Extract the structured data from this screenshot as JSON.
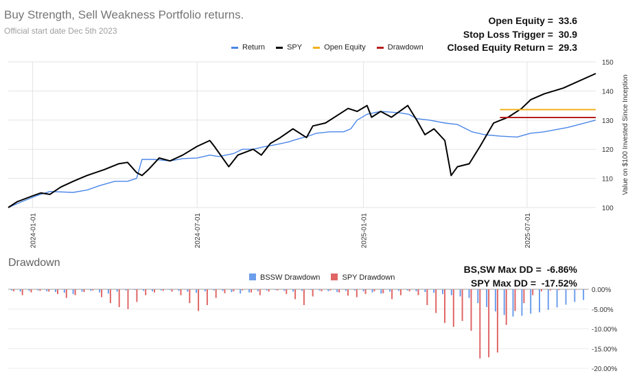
{
  "header": {
    "title": "Buy Strength, Sell Weakness Portfolio returns.",
    "subtitle": "Official start date Dec 5th 2023"
  },
  "stats_top": [
    {
      "label": "Open Equity =",
      "value": "33.6"
    },
    {
      "label": "Stop Loss Trigger =",
      "value": "30.9"
    },
    {
      "label": "Closed Equity Return =",
      "value": "29.3"
    }
  ],
  "stats_bottom": [
    {
      "label": "BS,SW Max DD =",
      "value": "-6.86%"
    },
    {
      "label": "SPY Max DD =",
      "value": "-17.52%"
    }
  ],
  "drawdown_title": "Drawdown",
  "colors": {
    "return": "#4a86e8",
    "spy": "#000000",
    "open_equity": "#f1b01c",
    "drawdown": "#b71c1c",
    "bssw_bar": "#6d9eeb",
    "spy_bar": "#e06666"
  },
  "chart_data": [
    {
      "type": "line",
      "y_axis_label": "Value on $100 Invested Since Inception",
      "y_ticks": [
        "100",
        "110",
        "120",
        "130",
        "140",
        "150"
      ],
      "ylim": [
        100,
        150
      ],
      "x_ticks": [
        "2024-01-01",
        "2024-07-01",
        "2025-01-01",
        "2025-07-01"
      ],
      "xlim": [
        "2023-12-05",
        "2025-09-15"
      ],
      "grid": true,
      "legend_position": "top",
      "series": [
        {
          "name": "Return",
          "points": [
            [
              "2023-12-05",
              100
            ],
            [
              "2023-12-20",
              102
            ],
            [
              "2024-01-05",
              104
            ],
            [
              "2024-01-20",
              105.5
            ],
            [
              "2024-02-15",
              105.2
            ],
            [
              "2024-03-01",
              106
            ],
            [
              "2024-03-15",
              107.5
            ],
            [
              "2024-04-01",
              109
            ],
            [
              "2024-04-15",
              109
            ],
            [
              "2024-04-25",
              110
            ],
            [
              "2024-05-01",
              116.5
            ],
            [
              "2024-05-15",
              116.5
            ],
            [
              "2024-06-01",
              116
            ],
            [
              "2024-06-15",
              116.8
            ],
            [
              "2024-07-01",
              117
            ],
            [
              "2024-07-15",
              118
            ],
            [
              "2024-07-25",
              117.5
            ],
            [
              "2024-08-10",
              118.5
            ],
            [
              "2024-08-20",
              120
            ],
            [
              "2024-09-01",
              120
            ],
            [
              "2024-09-15",
              121
            ],
            [
              "2024-09-25",
              121.5
            ],
            [
              "2024-10-10",
              122.5
            ],
            [
              "2024-10-20",
              123.5
            ],
            [
              "2024-11-01",
              124.5
            ],
            [
              "2024-11-10",
              125.5
            ],
            [
              "2024-11-25",
              126
            ],
            [
              "2024-12-10",
              126
            ],
            [
              "2024-12-18",
              127
            ],
            [
              "2024-12-25",
              130
            ],
            [
              "2025-01-05",
              132
            ],
            [
              "2025-01-20",
              133
            ],
            [
              "2025-02-10",
              132.5
            ],
            [
              "2025-02-20",
              132
            ],
            [
              "2025-03-01",
              130.5
            ],
            [
              "2025-03-15",
              130
            ],
            [
              "2025-04-01",
              129
            ],
            [
              "2025-04-15",
              128.5
            ],
            [
              "2025-05-01",
              126
            ],
            [
              "2025-05-15",
              125
            ],
            [
              "2025-06-01",
              124.5
            ],
            [
              "2025-06-20",
              124.2
            ],
            [
              "2025-07-05",
              125.5
            ],
            [
              "2025-07-20",
              126
            ],
            [
              "2025-08-15",
              127.5
            ],
            [
              "2025-09-15",
              130
            ]
          ]
        },
        {
          "name": "SPY",
          "points": [
            [
              "2023-12-05",
              100
            ],
            [
              "2023-12-15",
              102
            ],
            [
              "2024-01-01",
              104
            ],
            [
              "2024-01-10",
              105
            ],
            [
              "2024-01-20",
              104.5
            ],
            [
              "2024-02-01",
              107
            ],
            [
              "2024-02-15",
              109
            ],
            [
              "2024-03-01",
              111
            ],
            [
              "2024-03-20",
              113
            ],
            [
              "2024-04-05",
              115
            ],
            [
              "2024-04-15",
              115.5
            ],
            [
              "2024-04-25",
              112
            ],
            [
              "2024-05-01",
              111
            ],
            [
              "2024-05-08",
              113
            ],
            [
              "2024-05-20",
              117
            ],
            [
              "2024-06-01",
              116
            ],
            [
              "2024-06-15",
              118
            ],
            [
              "2024-07-01",
              121
            ],
            [
              "2024-07-15",
              123
            ],
            [
              "2024-07-20",
              121
            ],
            [
              "2024-08-05",
              114
            ],
            [
              "2024-08-15",
              118
            ],
            [
              "2024-09-01",
              120
            ],
            [
              "2024-09-10",
              118
            ],
            [
              "2024-09-20",
              122
            ],
            [
              "2024-10-01",
              124
            ],
            [
              "2024-10-15",
              127
            ],
            [
              "2024-10-30",
              124
            ],
            [
              "2024-11-06",
              128
            ],
            [
              "2024-11-20",
              129
            ],
            [
              "2024-12-05",
              132
            ],
            [
              "2024-12-15",
              134
            ],
            [
              "2024-12-25",
              133
            ],
            [
              "2025-01-05",
              135
            ],
            [
              "2025-01-10",
              131
            ],
            [
              "2025-01-20",
              133
            ],
            [
              "2025-02-01",
              131
            ],
            [
              "2025-02-19",
              135
            ],
            [
              "2025-03-01",
              130
            ],
            [
              "2025-03-10",
              125
            ],
            [
              "2025-03-20",
              127
            ],
            [
              "2025-04-01",
              123
            ],
            [
              "2025-04-08",
              111
            ],
            [
              "2025-04-15",
              114
            ],
            [
              "2025-04-28",
              115
            ],
            [
              "2025-05-10",
              121
            ],
            [
              "2025-05-25",
              129
            ],
            [
              "2025-06-10",
              131
            ],
            [
              "2025-06-25",
              134
            ],
            [
              "2025-07-05",
              137
            ],
            [
              "2025-07-20",
              139
            ],
            [
              "2025-08-10",
              141
            ],
            [
              "2025-09-15",
              146
            ]
          ]
        },
        {
          "name": "Open Equity",
          "points": [
            [
              "2025-06-01",
              133.6
            ],
            [
              "2025-09-15",
              133.6
            ]
          ]
        },
        {
          "name": "Drawdown",
          "points": [
            [
              "2025-06-01",
              130.9
            ],
            [
              "2025-09-15",
              130.9
            ]
          ]
        }
      ]
    },
    {
      "type": "bar",
      "y_ticks": [
        "0.00%",
        "-5.00%",
        "-10.00%",
        "-15.00%",
        "-20.00%"
      ],
      "ylim": [
        -20,
        0
      ],
      "legend_position": "top",
      "series": [
        {
          "name": "BSSW Drawdown",
          "values": [
            -0.3,
            -0.6,
            -0.4,
            -0.3,
            -0.5,
            -0.7,
            -0.9,
            -1.2,
            -0.6,
            -0.4,
            -0.8,
            -1.1,
            -0.6,
            -0.3,
            -0.2,
            -0.4,
            -0.5,
            -0.3,
            -0.2,
            -0.4,
            -0.6,
            -0.9,
            -0.5,
            -0.3,
            -0.4,
            -0.7,
            -1.1,
            -0.8,
            -0.5,
            -0.3,
            -0.2,
            -0.4,
            -0.6,
            -0.4,
            -0.2,
            -0.3,
            -0.5,
            -0.7,
            -0.4,
            -0.3,
            -0.5,
            -0.8,
            -1.1,
            -0.6,
            -0.4,
            -0.3,
            -0.5,
            -0.7,
            -0.9,
            -1.2,
            -1.5,
            -1.8,
            -2.2,
            -3.5,
            -4.5,
            -5.6,
            -6.5,
            -6.9,
            -6.7,
            -6.2,
            -5.8,
            -5.2,
            -4.6,
            -3.9,
            -3.2,
            -2.7
          ]
        },
        {
          "name": "SPY Drawdown",
          "values": [
            -0.5,
            -1.5,
            -0.8,
            -0.4,
            -0.6,
            -1.2,
            -2.2,
            -1.5,
            -0.7,
            -0.3,
            -2.0,
            -3.5,
            -4.5,
            -5.0,
            -3.2,
            -1.5,
            -0.8,
            -0.4,
            -0.6,
            -1.5,
            -3.5,
            -5.5,
            -4.0,
            -2.2,
            -1.0,
            -0.5,
            -0.3,
            -0.8,
            -1.5,
            -0.6,
            -0.3,
            -1.2,
            -2.5,
            -4.0,
            -1.8,
            -0.5,
            -0.3,
            -0.8,
            -1.6,
            -2.0,
            -1.2,
            -0.5,
            -1.0,
            -2.5,
            -1.5,
            -0.5,
            -1.5,
            -4.0,
            -6.0,
            -8.5,
            -9.5,
            -8.0,
            -10.5,
            -17.5,
            -17.2,
            -16.0,
            -9.0,
            -5.5,
            -3.5,
            -1.5,
            -0.5,
            -0.3,
            -0.2,
            -0.1,
            -0.1,
            -0.1
          ]
        }
      ]
    }
  ]
}
